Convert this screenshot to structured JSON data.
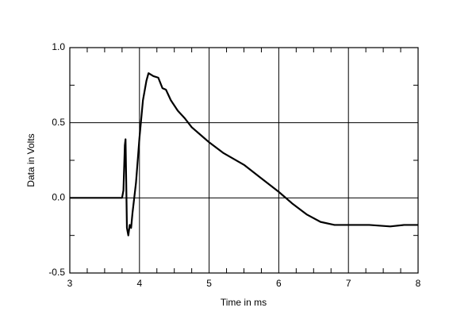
{
  "chart_data": {
    "type": "line",
    "x_label": "Time in ms",
    "y_label": "Data in Volts",
    "xlim": [
      3,
      8
    ],
    "xticks": [
      3,
      4,
      5,
      6,
      7,
      8
    ],
    "xminorticks": [
      3.25,
      3.5,
      3.75,
      4.25,
      4.5,
      4.75,
      5.25,
      5.5,
      5.75,
      6.25,
      6.5,
      6.75,
      7.25,
      7.5,
      7.75
    ],
    "ylim": [
      -0.5,
      1.0
    ],
    "yticks": [
      {
        "value": -0.5,
        "label": "-0.5"
      },
      {
        "value": 0,
        "label": "0.0"
      },
      {
        "value": 0.5,
        "label": "0.5"
      },
      {
        "value": 1.0,
        "label": "1.0"
      }
    ],
    "yminorticks": [
      -0.25,
      0.25,
      0.75
    ],
    "grid": true,
    "series": [
      {
        "color": "#000000",
        "x": [
          3,
          3.75,
          3.77,
          3.79,
          3.8,
          3.81,
          3.82,
          3.84,
          3.86,
          3.88,
          3.9,
          3.95,
          4.0,
          4.05,
          4.1,
          4.13,
          4.2,
          4.27,
          4.33,
          4.38,
          4.45,
          4.55,
          4.65,
          4.75,
          5.0,
          5.2,
          5.5,
          5.75,
          6.0,
          6.2,
          6.4,
          6.6,
          6.8,
          7.0,
          7.3,
          7.6,
          7.8,
          8
        ],
        "values": [
          0,
          0,
          0.05,
          0.35,
          0.39,
          0.1,
          -0.2,
          -0.25,
          -0.18,
          -0.2,
          -0.1,
          0.1,
          0.4,
          0.65,
          0.78,
          0.83,
          0.81,
          0.8,
          0.73,
          0.72,
          0.65,
          0.58,
          0.53,
          0.47,
          0.37,
          0.3,
          0.22,
          0.13,
          0.04,
          -0.04,
          -0.11,
          -0.16,
          -0.18,
          -0.18,
          -0.18,
          -0.19,
          -0.18,
          -0.18
        ]
      }
    ]
  }
}
